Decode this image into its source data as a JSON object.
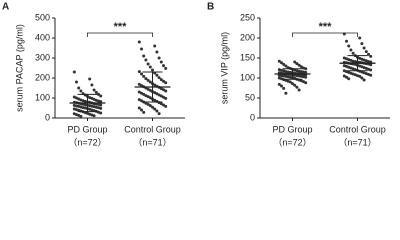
{
  "chart_data": [
    {
      "type": "dotplot",
      "panel": "A",
      "y_label": "serum PACAP (pg/ml)",
      "significance": "***",
      "categories": [
        "PD Group",
        "Control Group"
      ],
      "sublabels": [
        "（n=72）",
        "（n=71）"
      ],
      "ylim": [
        0,
        500
      ],
      "yticks": [
        0,
        100,
        200,
        300,
        400,
        500
      ],
      "color": "#333333",
      "values": [
        [
          230,
          195,
          180,
          165,
          150,
          140,
          135,
          128,
          122,
          118,
          115,
          110,
          108,
          105,
          102,
          100,
          98,
          95,
          93,
          90,
          88,
          86,
          85,
          83,
          82,
          80,
          79,
          78,
          77,
          75,
          74,
          72,
          71,
          70,
          69,
          68,
          66,
          65,
          64,
          63,
          62,
          60,
          59,
          58,
          57,
          55,
          54,
          52,
          51,
          50,
          48,
          47,
          45,
          44,
          42,
          40,
          39,
          37,
          35,
          33,
          31,
          29,
          27,
          25,
          23,
          21,
          19,
          17,
          15,
          13,
          11,
          8
        ],
        [
          380,
          360,
          345,
          330,
          310,
          300,
          290,
          280,
          270,
          262,
          255,
          248,
          240,
          232,
          225,
          220,
          214,
          208,
          202,
          197,
          192,
          188,
          184,
          180,
          176,
          172,
          168,
          165,
          162,
          159,
          156,
          153,
          150,
          147,
          144,
          141,
          138,
          135,
          132,
          130,
          127,
          124,
          121,
          118,
          115,
          112,
          110,
          107,
          104,
          101,
          98,
          95,
          92,
          89,
          86,
          83,
          80,
          77,
          74,
          71,
          68,
          65,
          62,
          58,
          54,
          50,
          45,
          40,
          35,
          28,
          22
        ]
      ],
      "means": [
        75,
        155
      ],
      "sds": [
        43,
        75
      ]
    },
    {
      "type": "dotplot",
      "panel": "B",
      "y_label": "serum VIP (pg/ml)",
      "significance": "***",
      "categories": [
        "PD Group",
        "Control Group"
      ],
      "sublabels": [
        "（n=72）",
        "（n=71）"
      ],
      "ylim": [
        0,
        250
      ],
      "yticks": [
        0,
        50,
        100,
        150,
        200,
        250
      ],
      "color": "#333333",
      "values": [
        [
          142,
          140,
          138,
          136,
          134,
          132,
          130,
          128,
          126,
          125,
          124,
          123,
          122,
          121,
          120,
          119,
          118,
          118,
          117,
          116,
          116,
          115,
          115,
          114,
          114,
          113,
          113,
          112,
          112,
          111,
          111,
          111,
          110,
          110,
          110,
          109,
          109,
          108,
          108,
          107,
          107,
          106,
          106,
          105,
          105,
          104,
          104,
          103,
          103,
          102,
          102,
          101,
          100,
          99,
          98,
          97,
          96,
          95,
          94,
          93,
          92,
          91,
          90,
          88,
          86,
          84,
          82,
          80,
          77,
          74,
          70,
          62
        ],
        [
          210,
          200,
          192,
          186,
          180,
          175,
          170,
          166,
          162,
          159,
          156,
          154,
          152,
          150,
          149,
          148,
          147,
          146,
          145,
          144,
          143,
          142,
          141,
          141,
          140,
          140,
          139,
          139,
          138,
          138,
          137,
          137,
          136,
          136,
          135,
          135,
          134,
          133,
          132,
          131,
          130,
          129,
          128,
          127,
          126,
          125,
          124,
          123,
          122,
          121,
          120,
          119,
          118,
          117,
          116,
          115,
          114,
          113,
          112,
          111,
          110,
          109,
          108,
          107,
          106,
          105,
          104,
          102,
          100,
          98,
          95
        ]
      ],
      "means": [
        110,
        137
      ],
      "sds": [
        13,
        19
      ]
    }
  ]
}
